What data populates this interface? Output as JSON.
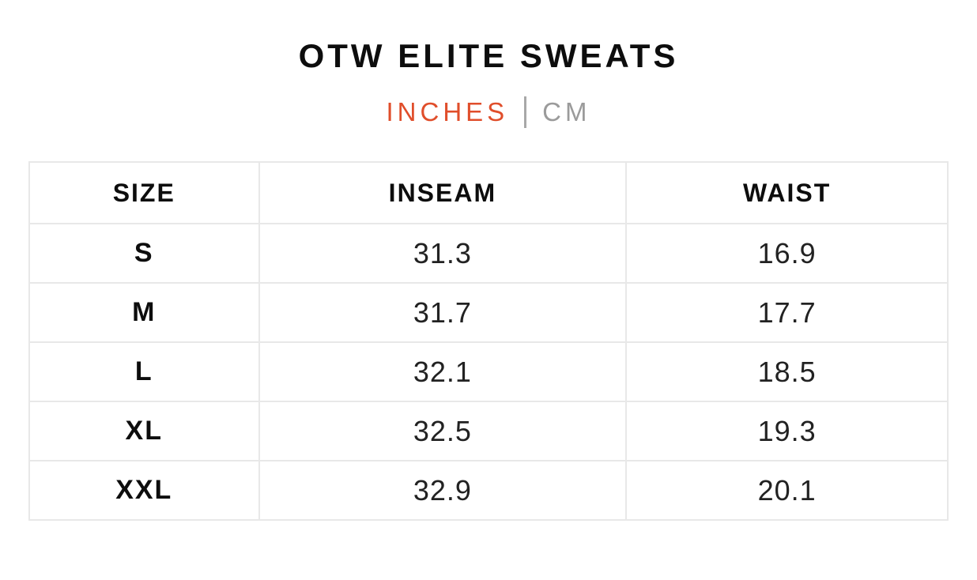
{
  "title": "OTW ELITE SWEATS",
  "unit_toggle": {
    "inches_label": "INCHES",
    "separator": "|",
    "cm_label": "CM",
    "active_unit": "INCHES",
    "active_color": "#e04e2b",
    "inactive_color": "#9b9b9b"
  },
  "table": {
    "columns": [
      "SIZE",
      "INSEAM",
      "WAIST"
    ],
    "rows": [
      {
        "size": "S",
        "inseam": "31.3",
        "waist": "16.9"
      },
      {
        "size": "M",
        "inseam": "31.7",
        "waist": "17.7"
      },
      {
        "size": "L",
        "inseam": "32.1",
        "waist": "18.5"
      },
      {
        "size": "XL",
        "inseam": "32.5",
        "waist": "19.3"
      },
      {
        "size": "XXL",
        "inseam": "32.9",
        "waist": "20.1"
      }
    ],
    "border_color": "#e8e8e8"
  }
}
